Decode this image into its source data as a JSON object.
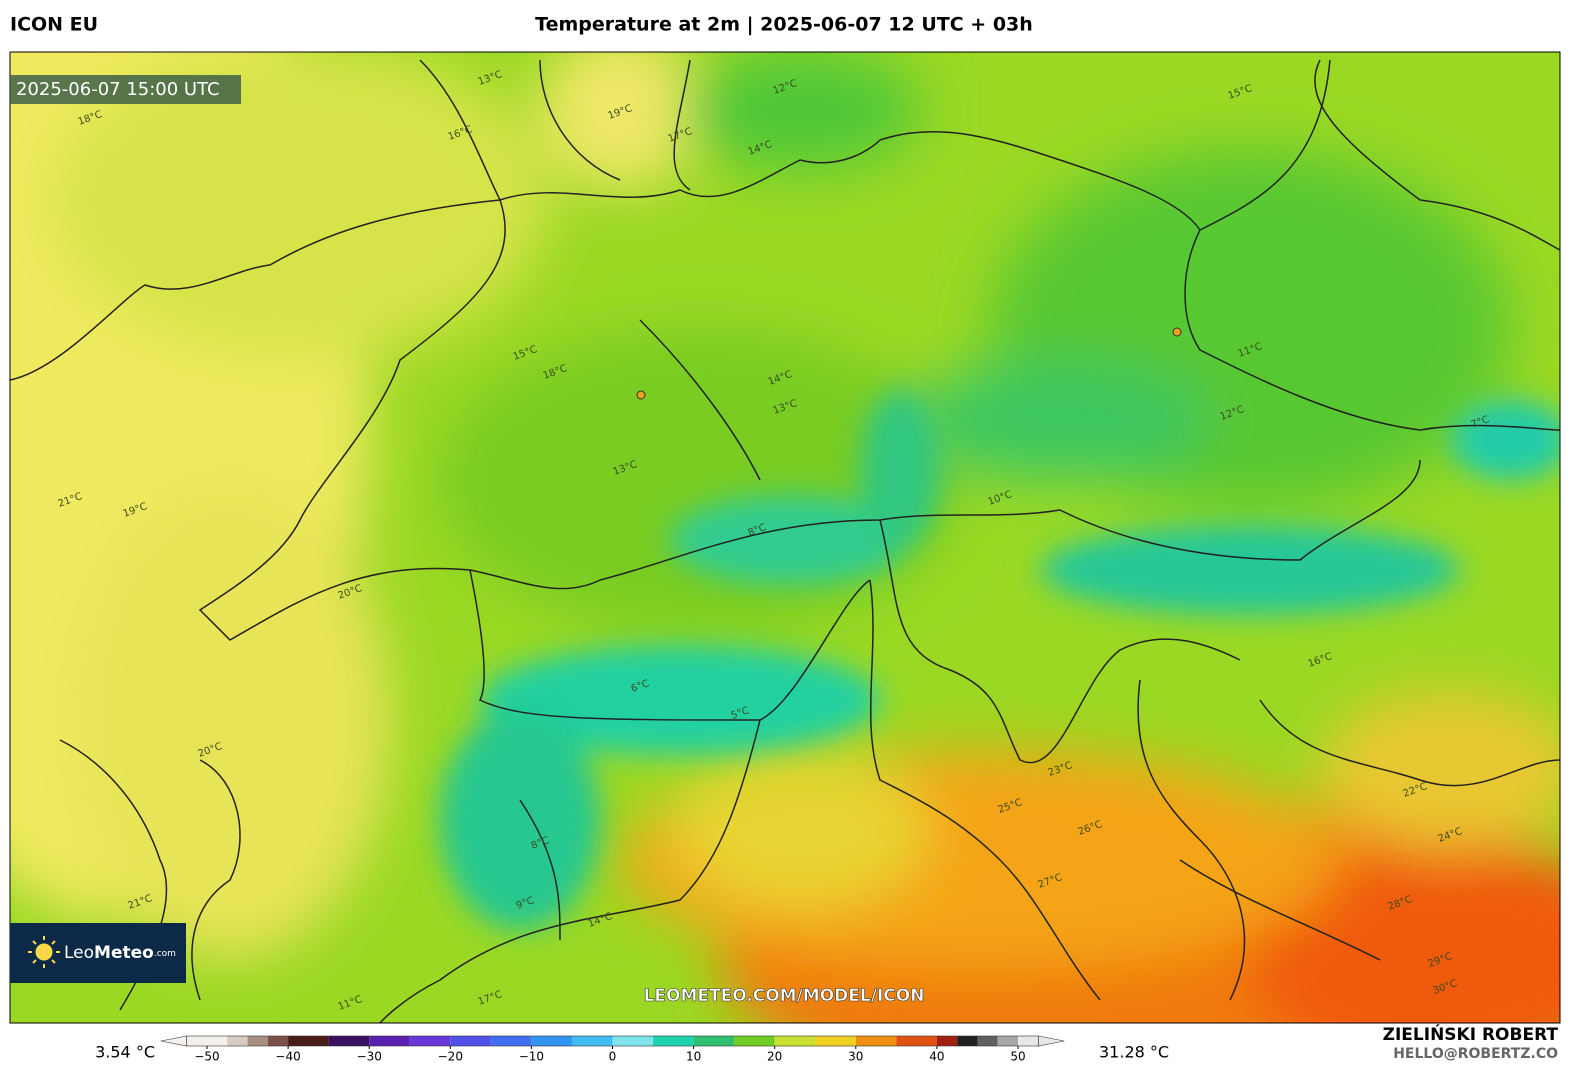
{
  "header": {
    "model": "ICON EU",
    "title": "Temperature at 2m | 2025-06-07 12 UTC + 03h",
    "credit_name": "ZIELIŃSKI ROBERT",
    "credit_email": "HELLO@ROBERTZ.CO"
  },
  "map": {
    "valid_time": "2025-06-07 15:00 UTC",
    "watermark": "LEOMETEO.COM/MODEL/ICON",
    "logo": [
      "Leo",
      "Meteo",
      ".com"
    ],
    "contour_labels": [
      "13°C",
      "18°C",
      "19°C",
      "12°C",
      "14°C",
      "13°C",
      "15°C",
      "16°C",
      "17°C",
      "15°C",
      "18°C",
      "13°C",
      "14°C",
      "11°C",
      "12°C",
      "7°C",
      "21°C",
      "19°C",
      "20°C",
      "8°C",
      "6°C",
      "5°C",
      "9°C",
      "10°C",
      "16°C",
      "23°C",
      "25°C",
      "26°C",
      "27°C",
      "28°C",
      "29°C",
      "30°C",
      "22°C",
      "24°C",
      "21°C",
      "17°C",
      "20°C",
      "14°C",
      "11°C",
      "8°C"
    ]
  },
  "colorbar": {
    "min_label": "3.54 °C",
    "max_label": "31.28 °C",
    "lim": [
      -52.5,
      52.5
    ],
    "ticks": [
      {
        "value": -50,
        "label": "−50"
      },
      {
        "value": -40,
        "label": "−40"
      },
      {
        "value": -30,
        "label": "−30"
      },
      {
        "value": -20,
        "label": "−20"
      },
      {
        "value": -10,
        "label": "−10"
      },
      0,
      10,
      20,
      30,
      40,
      50
    ],
    "stops": [
      {
        "value": -52.5,
        "color": "#f4f0ec"
      },
      {
        "value": -47.5,
        "color": "#d8ccc0"
      },
      {
        "value": -45,
        "color": "#a89080"
      },
      {
        "value": -42.5,
        "color": "#7a5048"
      },
      {
        "value": -40,
        "color": "#4a1a1a"
      },
      {
        "value": -35,
        "color": "#3a1060"
      },
      {
        "value": -30,
        "color": "#5a20b0"
      },
      {
        "value": -25,
        "color": "#6838d8"
      },
      {
        "value": -20,
        "color": "#5050e8"
      },
      {
        "value": -15,
        "color": "#4070f0"
      },
      {
        "value": -10,
        "color": "#3094f0"
      },
      {
        "value": -5,
        "color": "#40bcf0"
      },
      {
        "value": 0,
        "color": "#80e4ec"
      },
      {
        "value": 5,
        "color": "#20d4b0"
      },
      {
        "value": 10,
        "color": "#30c070"
      },
      {
        "value": 15,
        "color": "#70cc20"
      },
      {
        "value": 20,
        "color": "#c8e030"
      },
      {
        "value": 25,
        "color": "#f0d020"
      },
      {
        "value": 30,
        "color": "#f09010"
      },
      {
        "value": 35,
        "color": "#e05010"
      },
      {
        "value": 40,
        "color": "#a02010"
      },
      {
        "value": 42.5,
        "color": "#202020"
      },
      {
        "value": 45,
        "color": "#606060"
      },
      {
        "value": 47.5,
        "color": "#a8a8a8"
      },
      {
        "value": 50,
        "color": "#e8e8e8"
      }
    ]
  }
}
